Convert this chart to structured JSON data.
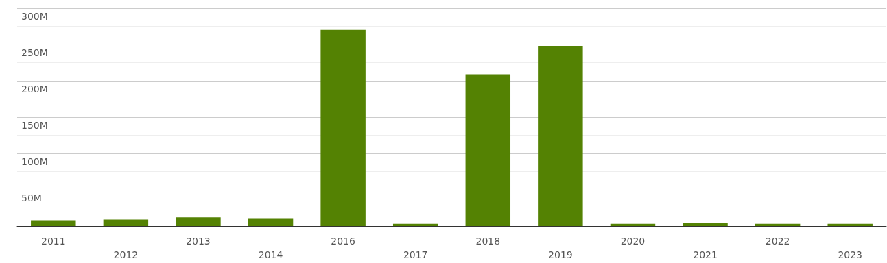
{
  "chart_data": {
    "type": "bar",
    "categories": [
      "2011",
      "2012",
      "2013",
      "2014",
      "2016",
      "2017",
      "2018",
      "2019",
      "2020",
      "2021",
      "2022",
      "2023"
    ],
    "values": [
      8,
      9,
      12,
      10,
      270,
      3,
      209,
      248,
      3,
      4,
      3,
      3
    ],
    "color": "#548203",
    "ylim": [
      0,
      300
    ],
    "yticks": [
      {
        "value": 0,
        "label": null
      },
      {
        "value": 25,
        "label": null
      },
      {
        "value": 50,
        "label": "50M"
      },
      {
        "value": 75,
        "label": null
      },
      {
        "value": 100,
        "label": "100M"
      },
      {
        "value": 125,
        "label": null
      },
      {
        "value": 150,
        "label": "150M"
      },
      {
        "value": 175,
        "label": null
      },
      {
        "value": 200,
        "label": "200M"
      },
      {
        "value": 225,
        "label": null
      },
      {
        "value": 250,
        "label": "250M"
      },
      {
        "value": 275,
        "label": null
      },
      {
        "value": 300,
        "label": "300M"
      }
    ],
    "grid": true
  }
}
